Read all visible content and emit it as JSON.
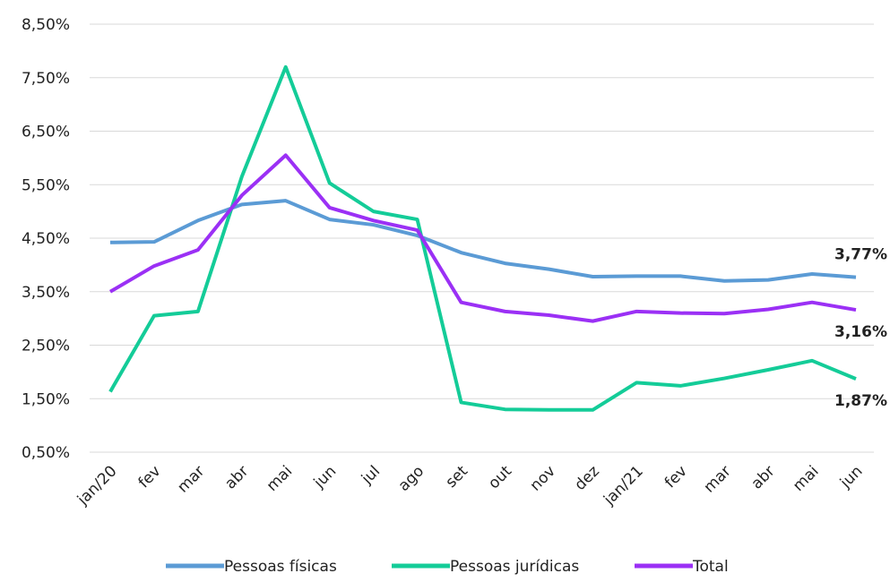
{
  "chart_data": {
    "type": "line",
    "categories": [
      "jan/20",
      "fev",
      "mar",
      "abr",
      "mai",
      "jun",
      "jul",
      "ago",
      "set",
      "out",
      "nov",
      "dez",
      "jan/21",
      "fev",
      "mar",
      "abr",
      "mai",
      "jun"
    ],
    "series": [
      {
        "name": "Pessoas físicas",
        "color": "#5b9bd5",
        "values": [
          4.42,
          4.43,
          4.83,
          5.13,
          5.2,
          4.85,
          4.75,
          4.55,
          4.23,
          4.03,
          3.92,
          3.78,
          3.79,
          3.79,
          3.7,
          3.72,
          3.83,
          3.77
        ],
        "value_labels": [
          null,
          null,
          null,
          null,
          null,
          null,
          null,
          null,
          null,
          null,
          null,
          null,
          null,
          null,
          null,
          null,
          null,
          "3,77%"
        ]
      },
      {
        "name": "Pessoas jurídicas",
        "color": "#14cc98",
        "values": [
          1.63,
          3.05,
          3.13,
          5.65,
          7.7,
          5.53,
          5.0,
          4.85,
          1.43,
          1.3,
          1.29,
          1.29,
          1.8,
          1.74,
          1.88,
          2.04,
          2.21,
          1.87
        ],
        "value_labels": [
          null,
          null,
          null,
          null,
          null,
          null,
          null,
          null,
          null,
          null,
          null,
          null,
          null,
          null,
          null,
          null,
          null,
          "1,87%"
        ]
      },
      {
        "name": "Total",
        "color": "#9b30f5",
        "values": [
          3.5,
          3.98,
          4.28,
          5.3,
          6.05,
          5.07,
          4.83,
          4.65,
          3.3,
          3.13,
          3.06,
          2.95,
          3.13,
          3.1,
          3.09,
          3.17,
          3.3,
          3.16
        ],
        "value_labels": [
          null,
          null,
          null,
          null,
          null,
          null,
          null,
          null,
          null,
          null,
          null,
          null,
          null,
          null,
          null,
          null,
          null,
          "3,16%"
        ]
      }
    ],
    "ylim": [
      0.5,
      8.5
    ],
    "yticks": [
      {
        "value": 0.5,
        "label": "0,50%"
      },
      {
        "value": 1.5,
        "label": "1,50%"
      },
      {
        "value": 2.5,
        "label": "2,50%"
      },
      {
        "value": 3.5,
        "label": "3,50%"
      },
      {
        "value": 4.5,
        "label": "4,50%"
      },
      {
        "value": 5.5,
        "label": "5,50%"
      },
      {
        "value": 6.5,
        "label": "6,50%"
      },
      {
        "value": 7.5,
        "label": "7,50%"
      },
      {
        "value": 8.5,
        "label": "8,50%"
      }
    ],
    "grid": true,
    "legend": "bottom"
  }
}
